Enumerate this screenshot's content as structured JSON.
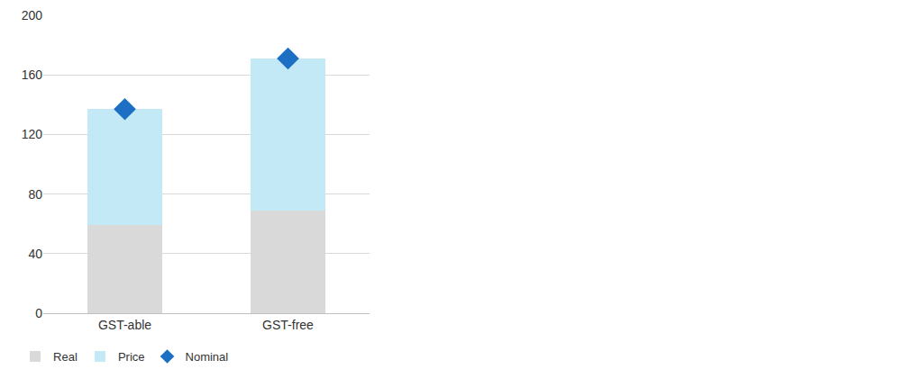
{
  "chart_data": {
    "type": "bar",
    "categories": [
      "GST-able",
      "GST-free"
    ],
    "stacked": true,
    "series": [
      {
        "name": "Real",
        "type": "bar",
        "color": "#d9d9d9",
        "values": [
          59,
          69
        ]
      },
      {
        "name": "Price",
        "type": "bar",
        "color": "#c3e9f7",
        "values": [
          78,
          102
        ]
      },
      {
        "name": "Nominal",
        "type": "scatter",
        "marker": "diamond",
        "color": "#1c6fc2",
        "values": [
          137,
          171
        ]
      }
    ],
    "ylim": [
      0,
      200
    ],
    "yticks": [
      0,
      40,
      80,
      120,
      160,
      200
    ],
    "grid": true,
    "legend": "bottom"
  }
}
